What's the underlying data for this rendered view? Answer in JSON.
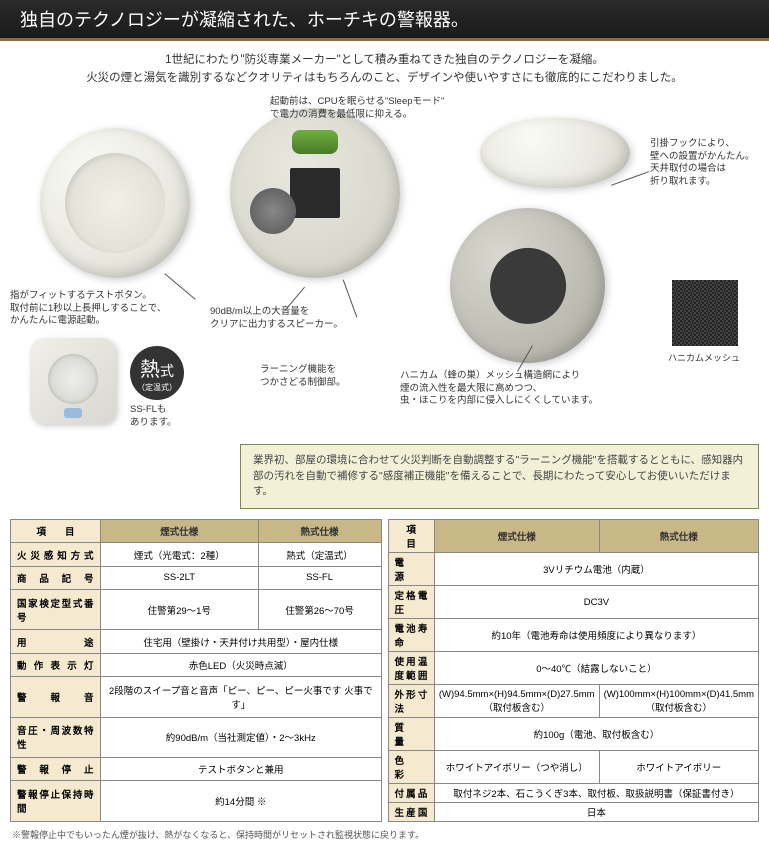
{
  "header": "独自のテクノロジーが凝縮された、ホーチキの警報器。",
  "intro1": "1世紀にわたり\"防災専業メーカー\"として積み重ねてきた独自のテクノロジーを凝縮。",
  "intro2": "火災の煙と湯気を識別するなどクオリティはもちろんのこと、デザインや使いやすさにも徹底的にこだわりました。",
  "annotations": {
    "sleep": "起動前は、CPUを眠らせる\"Sleepモード\"\nで電力の消費を最低限に抑える。",
    "hook": "引掛フックにより、\n壁への設置がかんたん。\n天井取付の場合は\n折り取れます。",
    "test_button": "指がフィットするテストボタン。\n取付前に1秒以上長押しすることで、\nかんたんに電源起動。",
    "speaker": "90dB/m以上の大音量を\nクリアに出力するスピーカー。",
    "learning": "ラーニング機能を\nつかさどる制御部。",
    "honeycomb": "ハニカム（蜂の巣）メッシュ構造網により\n煙の流入性を最大限に高めつつ、\n虫・ほこりを内部に侵入しにくくしています。",
    "mesh_label": "ハニカムメッシュ"
  },
  "heat_badge": {
    "main": "熱",
    "suffix": "式",
    "sub": "（定温式）"
  },
  "ssfl": "SS-FLも\nあります。",
  "info_box": "業界初、部屋の環境に合わせて火災判断を自動調整する\"ラーニング機能\"を搭載するとともに、感知器内部の汚れを自動で補修する\"感度補正機能\"を備えることで、長期にわたって安心してお使いいただけます。",
  "tableA": {
    "headers": [
      "項　　目",
      "煙式仕様",
      "熱式仕様"
    ],
    "rows": [
      [
        "火災感知方式",
        "煙式（光電式：2種）",
        "熱式（定温式）"
      ],
      [
        "商品記号",
        "SS-2LT",
        "SS-FL"
      ],
      [
        "国家検定型式番号",
        "住警第29～1号",
        "住警第26～70号"
      ],
      [
        "用　　途",
        "住宅用（壁掛け・天井付け共用型）・屋内仕様",
        ""
      ],
      [
        "動作表示灯",
        "赤色LED（火災時点滅）",
        ""
      ],
      [
        "警報音",
        "2段階のスイープ音と音声「ピー、ピー、ピー火事です 火事です」",
        ""
      ],
      [
        "音圧・周波数特性",
        "約90dB/m（当社測定値）・2～3kHz",
        ""
      ],
      [
        "警報停止",
        "テストボタンと兼用",
        ""
      ],
      [
        "警報停止保持時間",
        "約14分間 ※",
        ""
      ]
    ]
  },
  "tableB": {
    "headers": [
      "項　　目",
      "煙式仕様",
      "熱式仕様"
    ],
    "rows": [
      [
        "電　　源",
        "3Vリチウム電池（内蔵）",
        ""
      ],
      [
        "定格電圧",
        "DC3V",
        ""
      ],
      [
        "電池寿命",
        "約10年（電池寿命は使用頻度により異なります）",
        ""
      ],
      [
        "使用温度範囲",
        "0～40℃（結露しないこと）",
        ""
      ],
      [
        "外形寸法",
        "(W)94.5mm×(H)94.5mm×(D)27.5mm\n（取付板含む）",
        "(W)100mm×(H)100mm×(D)41.5mm\n（取付板含む）"
      ],
      [
        "質　　量",
        "約100g（電池、取付板含む）",
        ""
      ],
      [
        "色　　彩",
        "ホワイトアイボリー（つや消し）",
        "ホワイトアイボリー"
      ],
      [
        "付属品",
        "取付ネジ2本、石こうくぎ3本、取付板、取扱説明書（保証書付き）",
        ""
      ],
      [
        "生産国",
        "日本",
        ""
      ]
    ]
  },
  "footnote": "※警報停止中でもいったん煙が抜け、熱がなくなると、保持時間がリセットされ監視状態に戻ります。",
  "colors": {
    "header_bg": "#1f1f1f",
    "header_border": "#8b6b3a",
    "table_header": "#c8b888",
    "row_header": "#f5ead0",
    "info_border": "#7a8a4a",
    "info_bg": "#f3f0d8"
  }
}
